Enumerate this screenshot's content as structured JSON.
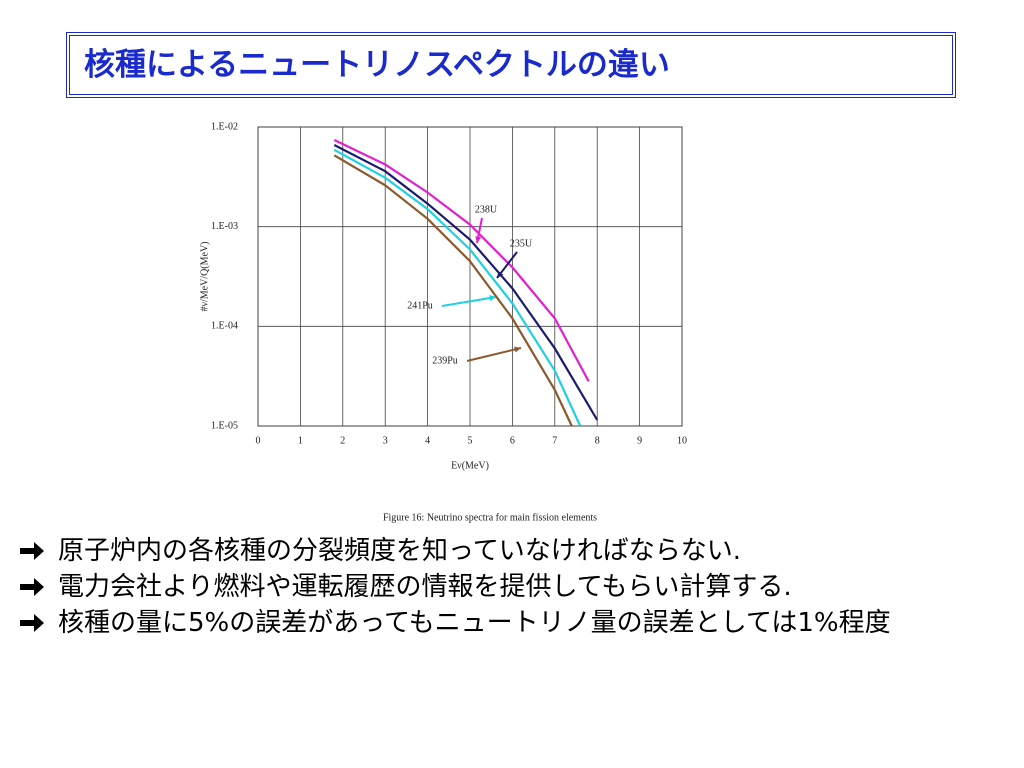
{
  "slide_title": "核種によるニュートリノスペクトルの違い",
  "chart_data": {
    "type": "line",
    "x_label": "Eν(MeV)",
    "y_label": "#ν/MeV/Q(MeV)",
    "caption": "Figure 16: Neutrino spectra for main fission elements",
    "log_y": true,
    "grid": true,
    "xlim": [
      0,
      10
    ],
    "xticks": [
      0,
      1,
      2,
      3,
      4,
      5,
      6,
      7,
      8,
      9,
      10
    ],
    "ylim": [
      1e-05,
      0.01
    ],
    "yticks": [
      {
        "value": 1e-05,
        "label": "1.E-05"
      },
      {
        "value": 0.0001,
        "label": "1.E-04"
      },
      {
        "value": 0.001,
        "label": "1.E-03"
      },
      {
        "value": 0.01,
        "label": "1.E-02"
      }
    ],
    "series": [
      {
        "name": "238U",
        "color": "#e020d0",
        "x": [
          1.8,
          3,
          4,
          5,
          6,
          7,
          7.8
        ],
        "values": [
          0.0074,
          0.0042,
          0.0022,
          0.00105,
          0.00039,
          0.00012,
          2.8e-05
        ]
      },
      {
        "name": "235U",
        "color": "#1a1a6e",
        "x": [
          1.8,
          3,
          4,
          5,
          6,
          7,
          8
        ],
        "values": [
          0.0066,
          0.0036,
          0.0017,
          0.00074,
          0.00024,
          6e-05,
          1.15e-05
        ]
      },
      {
        "name": "241Pu",
        "color": "#20d0e0",
        "x": [
          1.8,
          3,
          4,
          5,
          6,
          7,
          7.6
        ],
        "values": [
          0.0059,
          0.0031,
          0.0015,
          0.00059,
          0.00017,
          3.6e-05,
          1e-05
        ]
      },
      {
        "name": "239Pu",
        "color": "#8b5a2b",
        "x": [
          1.8,
          3,
          4,
          5,
          6,
          7,
          7.4
        ],
        "values": [
          0.0052,
          0.0026,
          0.0012,
          0.00045,
          0.00012,
          2.3e-05,
          1e-05
        ]
      }
    ]
  },
  "bullets": [
    "原子炉内の各核種の分裂頻度を知っていなければならない.",
    "電力会社より燃料や運転履歴の情報を提供してもらい計算する.",
    "核種の量に5%の誤差があってもニュートリノ量の誤差としては1%程度"
  ]
}
